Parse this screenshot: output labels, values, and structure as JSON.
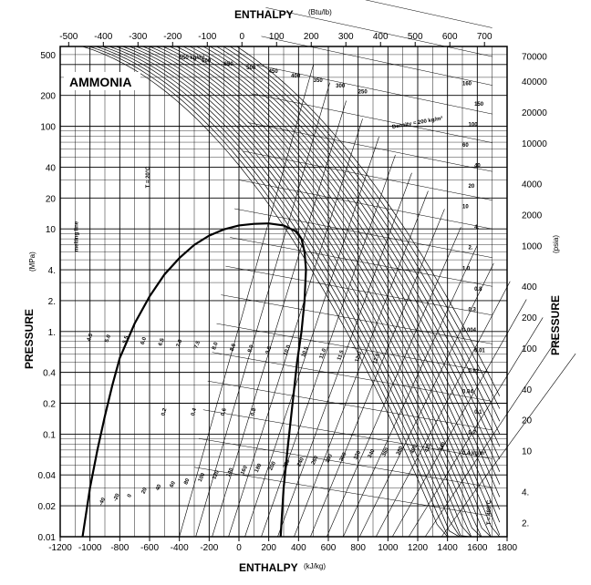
{
  "chart_data": {
    "type": "line",
    "title": "AMMONIA",
    "top_axis": {
      "label": "ENTHALPY",
      "unit": "(Btu/lb)",
      "ticks": [
        -500,
        -400,
        -300,
        -200,
        -100,
        0,
        100,
        200,
        300,
        400,
        500,
        600,
        700
      ]
    },
    "bottom_axis": {
      "label": "ENTHALPY",
      "unit": "(kJ/kg)",
      "range": [
        -1200,
        1800
      ],
      "ticks": [
        -1200,
        -1000,
        -800,
        -600,
        -400,
        -200,
        0,
        200,
        400,
        600,
        800,
        1000,
        1200,
        1400,
        1600,
        1800
      ]
    },
    "left_axis": {
      "label": "PRESSURE",
      "unit": "(MPa)",
      "scale": "log",
      "range": [
        0.01,
        600
      ],
      "ticks": [
        "500",
        "200",
        "100",
        "40",
        "20",
        "10",
        "4.",
        "2.",
        "1.",
        "0.4",
        "0.2",
        "0.1",
        "0.04",
        "0.02",
        "0.01"
      ],
      "tick_values": [
        500,
        200,
        100,
        40,
        20,
        10,
        4,
        2,
        1,
        0.4,
        0.2,
        0.1,
        0.04,
        0.02,
        0.01
      ]
    },
    "right_axis": {
      "label": "PRESSURE",
      "unit": "(psia)",
      "ticks": [
        "70000",
        "40000",
        "20000",
        "10000",
        "4000",
        "2000",
        "1000",
        "400",
        "200",
        "100",
        "40",
        "20",
        "10",
        "4.",
        "2."
      ],
      "tick_values": [
        70000,
        40000,
        20000,
        10000,
        4000,
        2000,
        1000,
        400,
        200,
        100,
        40,
        20,
        10,
        4,
        2
      ]
    },
    "grid": true,
    "saturation_dome": {
      "critical_point": {
        "h": 200,
        "p": 11.3
      },
      "liquid_line": [
        {
          "h": -1050,
          "p": 0.01
        },
        {
          "h": -1000,
          "p": 0.03
        },
        {
          "h": -950,
          "p": 0.07
        },
        {
          "h": -900,
          "p": 0.15
        },
        {
          "h": -850,
          "p": 0.3
        },
        {
          "h": -800,
          "p": 0.55
        },
        {
          "h": -700,
          "p": 1.2
        },
        {
          "h": -600,
          "p": 2.2
        },
        {
          "h": -500,
          "p": 3.6
        },
        {
          "h": -400,
          "p": 5.2
        },
        {
          "h": -300,
          "p": 7
        },
        {
          "h": -200,
          "p": 8.6
        },
        {
          "h": -100,
          "p": 9.9
        },
        {
          "h": 0,
          "p": 10.8
        },
        {
          "h": 100,
          "p": 11.2
        },
        {
          "h": 200,
          "p": 11.3
        }
      ],
      "vapor_line": [
        {
          "h": 200,
          "p": 11.3
        },
        {
          "h": 300,
          "p": 10.8
        },
        {
          "h": 380,
          "p": 9.5
        },
        {
          "h": 420,
          "p": 8
        },
        {
          "h": 440,
          "p": 6
        },
        {
          "h": 450,
          "p": 4
        },
        {
          "h": 440,
          "p": 2
        },
        {
          "h": 420,
          "p": 1
        },
        {
          "h": 390,
          "p": 0.5
        },
        {
          "h": 360,
          "p": 0.2
        },
        {
          "h": 330,
          "p": 0.08
        },
        {
          "h": 300,
          "p": 0.03
        },
        {
          "h": 280,
          "p": 0.01
        }
      ]
    },
    "density_label": "Density = 200 kg/m³",
    "density_values_top": [
      "550 kg/m³",
      "600",
      "650",
      "500",
      "450",
      "400",
      "350",
      "300",
      "250"
    ],
    "isotherm_label": "T = 20°C",
    "isotherm_label_bottom": "T = 480°C",
    "low_density_values": [
      "0.4 kg/m³",
      "0.2",
      "0.1",
      "0.04",
      "0.02",
      "0.01",
      "0.004",
      "0.3",
      "0.8",
      "1.0",
      "2.",
      "4.",
      "10",
      "20",
      "40",
      "60",
      "100",
      "150",
      "160"
    ],
    "quality_labels": [
      "0.2",
      "0.4",
      "0.6",
      "0.8"
    ],
    "entropy_labels": [
      "4.5",
      "5.0",
      "5.5",
      "6.0",
      "6.5",
      "7.0",
      "7.5",
      "8.0",
      "8.5",
      "9.0",
      "9.5",
      "10.0",
      "10.5",
      "11.0",
      "11.5",
      "12.0",
      "12.5"
    ],
    "temperature_labels": [
      "-40",
      "-20",
      "0",
      "20",
      "40",
      "60",
      "80",
      "100",
      "120",
      "140",
      "160",
      "180",
      "200",
      "220",
      "240",
      "260",
      "280",
      "300",
      "320",
      "340",
      "360",
      "380",
      "400",
      "420",
      "440"
    ],
    "melting_label": "melting line"
  }
}
